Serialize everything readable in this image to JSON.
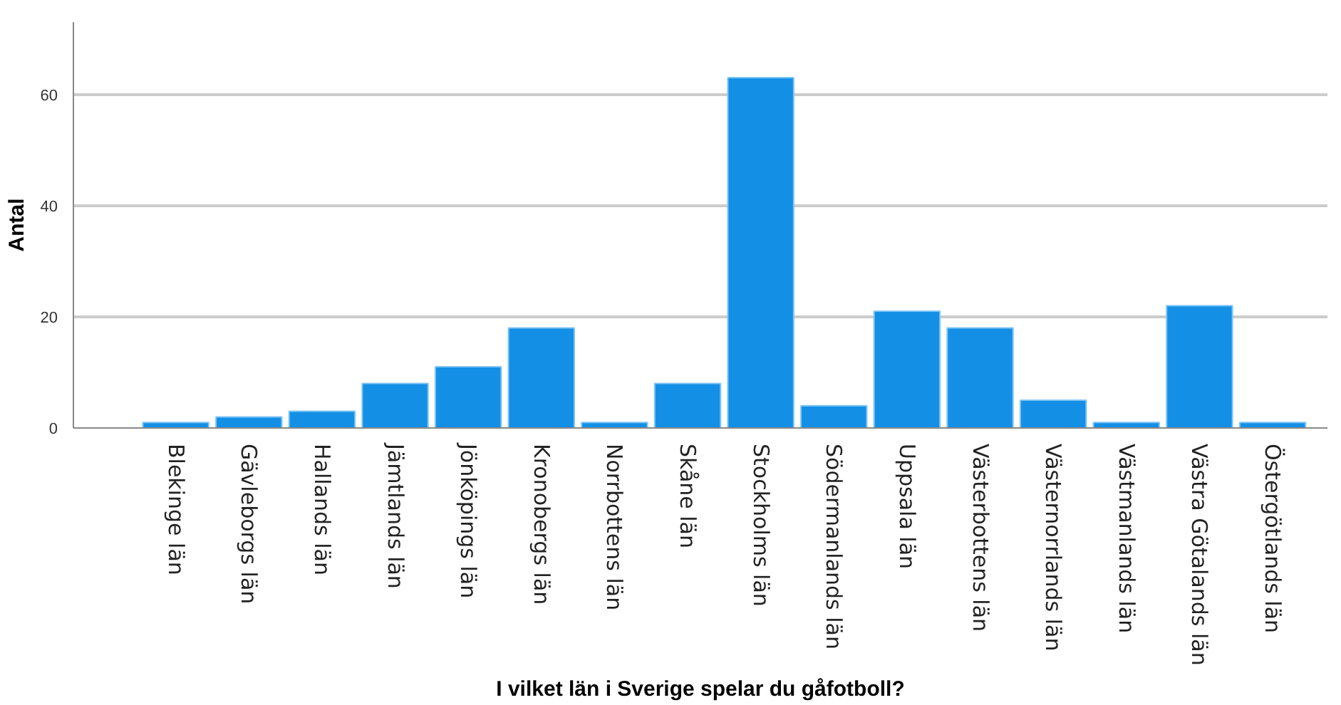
{
  "chart_data": {
    "type": "bar",
    "xlabel": "I vilket län i Sverige spelar du gåfotboll?",
    "ylabel": "Antal",
    "categories": [
      "Blekinge län",
      "Gävleborgs län",
      "Hallands län",
      "Jämtlands län",
      "Jönköpings län",
      "Kronobergs län",
      "Norrbottens län",
      "Skåne län",
      "Stockholms län",
      "Södermanlands län",
      "Uppsala län",
      "Västerbottens län",
      "Västernorrlands län",
      "Västmanlands län",
      "Västra Götalands län",
      "Östergötlands län"
    ],
    "values": [
      1,
      2,
      3,
      8,
      11,
      18,
      1,
      8,
      63,
      4,
      21,
      18,
      5,
      1,
      22,
      1
    ],
    "color": "#1390e6",
    "ylim": [
      0,
      73
    ],
    "yticks": [
      0,
      20,
      40,
      60
    ],
    "grid": "y"
  }
}
